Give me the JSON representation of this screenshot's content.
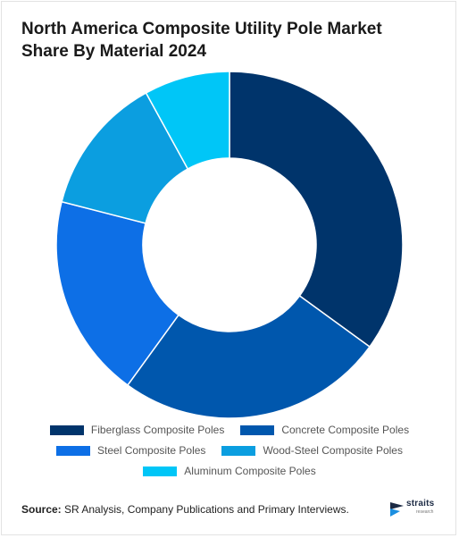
{
  "chart_data": {
    "type": "pie",
    "donut": true,
    "title": "North America Composite Utility Pole Market Share By Material 2024",
    "categories": [
      "Fiberglass Composite Poles",
      "Concrete Composite Poles",
      "Steel Composite Poles",
      "Wood-Steel Composite Poles",
      "Aluminum Composite Poles"
    ],
    "values": [
      35,
      25,
      19,
      13,
      8
    ],
    "colors": [
      "#00346b",
      "#0057ad",
      "#0d6fe6",
      "#0b9ee0",
      "#00c6f7"
    ],
    "legend_position": "bottom"
  },
  "source": {
    "label": "Source:",
    "text": " SR Analysis, Company Publications and Primary Interviews."
  },
  "logo": {
    "name": "straits",
    "tagline": "research"
  }
}
